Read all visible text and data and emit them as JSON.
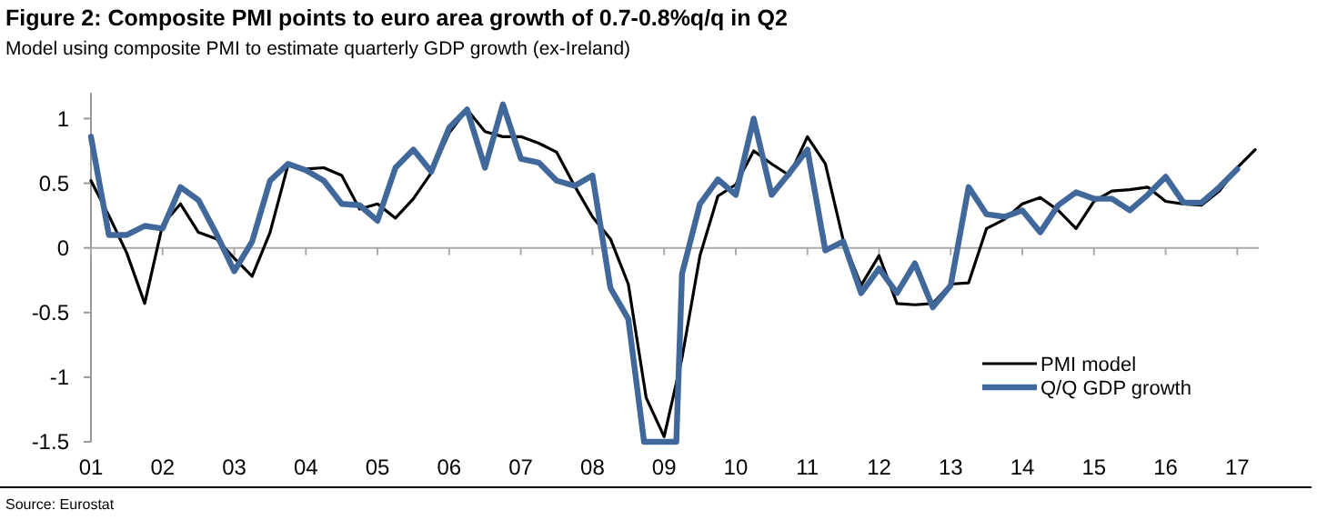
{
  "chart_data": {
    "type": "line",
    "title": "Figure 2: Composite PMI points to euro area growth of 0.7-0.8%q/q in Q2",
    "subtitle": "Model using composite PMI to estimate quarterly GDP growth (ex-Ireland)",
    "annotations": [
      "Source: Eurostat"
    ],
    "xlim": [
      2001,
      2017.3
    ],
    "xticks": [
      {
        "value": 2001,
        "label": "01"
      },
      {
        "value": 2002,
        "label": "02"
      },
      {
        "value": 2003,
        "label": "03"
      },
      {
        "value": 2004,
        "label": "04"
      },
      {
        "value": 2005,
        "label": "05"
      },
      {
        "value": 2006,
        "label": "06"
      },
      {
        "value": 2007,
        "label": "07"
      },
      {
        "value": 2008,
        "label": "08"
      },
      {
        "value": 2009,
        "label": "09"
      },
      {
        "value": 2010,
        "label": "10"
      },
      {
        "value": 2011,
        "label": "11"
      },
      {
        "value": 2012,
        "label": "12"
      },
      {
        "value": 2013,
        "label": "13"
      },
      {
        "value": 2014,
        "label": "14"
      },
      {
        "value": 2015,
        "label": "15"
      },
      {
        "value": 2016,
        "label": "16"
      },
      {
        "value": 2017,
        "label": "17"
      }
    ],
    "ylim": [
      -1.5,
      1.2
    ],
    "yticks": [
      -1.5,
      -1,
      -0.5,
      0,
      0.5,
      1
    ],
    "legend": "bottom right",
    "series": [
      {
        "name": "PMI model",
        "color": "#000000",
        "x": [
          2001,
          2001.25,
          2001.5,
          2001.75,
          2002,
          2002.25,
          2002.5,
          2002.75,
          2003,
          2003.25,
          2003.5,
          2003.75,
          2004,
          2004.25,
          2004.5,
          2004.75,
          2005,
          2005.25,
          2005.5,
          2005.75,
          2006,
          2006.25,
          2006.5,
          2006.75,
          2007,
          2007.25,
          2007.5,
          2007.75,
          2008,
          2008.25,
          2008.5,
          2008.75,
          2009,
          2009.25,
          2009.5,
          2009.75,
          2010,
          2010.25,
          2010.5,
          2010.75,
          2011,
          2011.25,
          2011.5,
          2011.75,
          2012,
          2012.25,
          2012.5,
          2012.75,
          2013,
          2013.25,
          2013.5,
          2013.75,
          2014,
          2014.25,
          2014.5,
          2014.75,
          2015,
          2015.25,
          2015.5,
          2015.75,
          2016,
          2016.25,
          2016.5,
          2016.75,
          2017,
          2017.25
        ],
        "values": [
          0.52,
          0.25,
          -0.04,
          -0.43,
          0.18,
          0.34,
          0.12,
          0.07,
          -0.08,
          -0.22,
          0.12,
          0.64,
          0.61,
          0.62,
          0.56,
          0.3,
          0.34,
          0.23,
          0.38,
          0.58,
          0.89,
          1.07,
          0.9,
          0.86,
          0.86,
          0.81,
          0.74,
          0.48,
          0.24,
          0.07,
          -0.28,
          -1.16,
          -1.46,
          -0.85,
          -0.06,
          0.4,
          0.49,
          0.75,
          0.65,
          0.56,
          0.86,
          0.65,
          0.06,
          -0.29,
          -0.06,
          -0.43,
          -0.44,
          -0.43,
          -0.28,
          -0.27,
          0.15,
          0.22,
          0.34,
          0.39,
          0.29,
          0.15,
          0.36,
          0.44,
          0.45,
          0.47,
          0.36,
          0.34,
          0.33,
          0.44,
          0.62,
          0.76
        ]
      },
      {
        "name": "Q/Q GDP growth",
        "color": "#41689a",
        "x": [
          2001,
          2001.25,
          2001.5,
          2001.75,
          2002,
          2002.25,
          2002.5,
          2002.75,
          2003,
          2003.25,
          2003.5,
          2003.75,
          2004,
          2004.25,
          2004.5,
          2004.75,
          2005,
          2005.25,
          2005.5,
          2005.75,
          2006,
          2006.25,
          2006.5,
          2006.75,
          2007,
          2007.25,
          2007.5,
          2007.75,
          2008,
          2008.25,
          2008.5,
          2008.72,
          2009.17,
          2009.25,
          2009.5,
          2009.75,
          2010,
          2010.25,
          2010.5,
          2010.75,
          2011,
          2011.25,
          2011.5,
          2011.75,
          2012,
          2012.25,
          2012.5,
          2012.75,
          2013,
          2013.25,
          2013.5,
          2013.75,
          2014,
          2014.25,
          2014.5,
          2014.75,
          2015,
          2015.25,
          2015.5,
          2015.75,
          2016,
          2016.25,
          2016.5,
          2016.75,
          2017
        ],
        "values": [
          0.86,
          0.1,
          0.1,
          0.17,
          0.15,
          0.47,
          0.37,
          0.11,
          -0.18,
          0.05,
          0.52,
          0.65,
          0.6,
          0.52,
          0.34,
          0.33,
          0.21,
          0.62,
          0.76,
          0.59,
          0.93,
          1.07,
          0.62,
          1.11,
          0.69,
          0.66,
          0.52,
          0.48,
          0.56,
          -0.31,
          -0.55,
          -1.5,
          -1.5,
          -0.2,
          0.34,
          0.53,
          0.41,
          1.0,
          0.41,
          0.58,
          0.76,
          -0.02,
          0.05,
          -0.35,
          -0.16,
          -0.35,
          -0.12,
          -0.46,
          -0.29,
          0.47,
          0.26,
          0.24,
          0.29,
          0.12,
          0.33,
          0.43,
          0.38,
          0.38,
          0.29,
          0.41,
          0.55,
          0.35,
          0.35,
          0.47,
          0.61
        ]
      }
    ]
  }
}
